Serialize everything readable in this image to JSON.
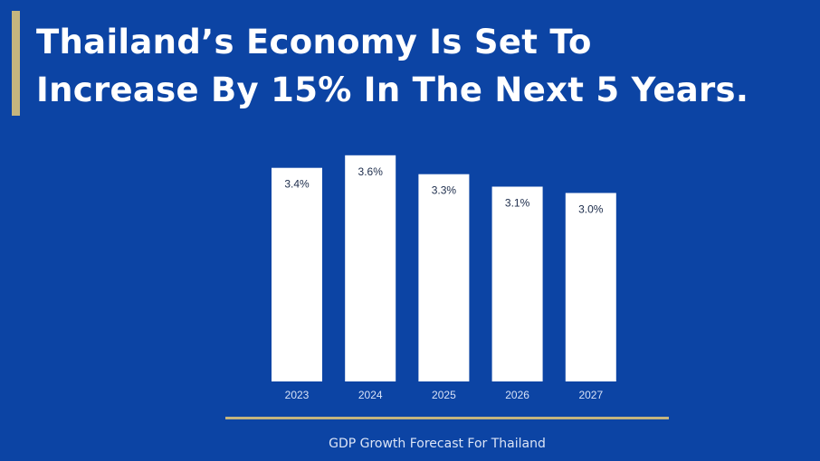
{
  "slide": {
    "title_lines": [
      "Thailand’s Economy Is Set To",
      "Increase By 15% In The Next 5 Years."
    ],
    "caption": "GDP Growth Forecast For Thailand",
    "colors": {
      "background": "#0c44a4",
      "accent_gold": "#c4b57e",
      "bars": "#ffffff"
    }
  },
  "chart_data": {
    "type": "bar",
    "categories": [
      "2023",
      "2024",
      "2025",
      "2026",
      "2027"
    ],
    "values": [
      3.4,
      3.6,
      3.3,
      3.1,
      3.0
    ],
    "value_labels": [
      "3.4%",
      "3.6%",
      "3.3%",
      "3.1%",
      "3.0%"
    ],
    "title": "",
    "xlabel": "",
    "ylabel": "",
    "ylim": [
      0,
      3.6
    ],
    "grid": false,
    "legend": "none"
  }
}
